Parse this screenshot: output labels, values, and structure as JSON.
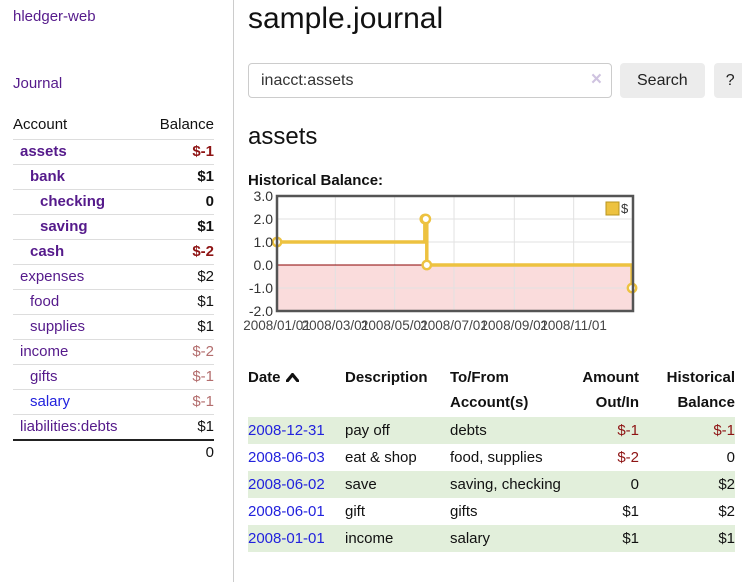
{
  "app": {
    "brand": "hledger-web"
  },
  "sidebar": {
    "journal_link": "Journal",
    "accounts": {
      "col_account": "Account",
      "col_balance": "Balance",
      "rows": [
        {
          "account": "assets",
          "balance": "$-1",
          "depth": 0,
          "bold": true,
          "balance_tone": "neg-strong",
          "link_blue": false
        },
        {
          "account": "bank",
          "balance": "$1",
          "depth": 1,
          "bold": true,
          "balance_tone": "",
          "link_blue": false
        },
        {
          "account": "checking",
          "balance": "0",
          "depth": 2,
          "bold": true,
          "balance_tone": "",
          "link_blue": false
        },
        {
          "account": "saving",
          "balance": "$1",
          "depth": 2,
          "bold": true,
          "balance_tone": "",
          "link_blue": false
        },
        {
          "account": "cash",
          "balance": "$-2",
          "depth": 1,
          "bold": true,
          "balance_tone": "neg-strong",
          "link_blue": false
        },
        {
          "account": "expenses",
          "balance": "$2",
          "depth": 0,
          "bold": false,
          "balance_tone": "",
          "link_blue": false
        },
        {
          "account": "food",
          "balance": "$1",
          "depth": 1,
          "bold": false,
          "balance_tone": "",
          "link_blue": false
        },
        {
          "account": "supplies",
          "balance": "$1",
          "depth": 1,
          "bold": false,
          "balance_tone": "",
          "link_blue": false
        },
        {
          "account": "income",
          "balance": "$-2",
          "depth": 0,
          "bold": false,
          "balance_tone": "neg-soft",
          "link_blue": false
        },
        {
          "account": "gifts",
          "balance": "$-1",
          "depth": 1,
          "bold": false,
          "balance_tone": "neg-soft",
          "link_blue": false
        },
        {
          "account": "salary",
          "balance": "$-1",
          "depth": 1,
          "bold": false,
          "balance_tone": "neg-soft",
          "link_blue": true
        },
        {
          "account": "liabilities:debts",
          "balance": "$1",
          "depth": 0,
          "bold": false,
          "balance_tone": "",
          "link_blue": false
        }
      ],
      "total": "0"
    }
  },
  "header": {
    "title": "sample.journal"
  },
  "search": {
    "value": "inacct:assets",
    "clear": "×",
    "search_label": "Search",
    "help_label": "?"
  },
  "account_page": {
    "heading": "assets",
    "chart_title": "Historical Balance:"
  },
  "chart_data": {
    "type": "line",
    "title": "Historical Balance",
    "legend": [
      {
        "label": "$",
        "color": "#edc240"
      }
    ],
    "legend_position": "top-right",
    "grid": true,
    "step": true,
    "line_color": "#edc240",
    "marker_fill": "#ffffff",
    "border_color": "#545454",
    "gridline_color": "#e2e2e2",
    "negative_region": {
      "from": -2,
      "to": 0,
      "color": "#fadcdc"
    },
    "zero_line_color": "#8b0000",
    "x_range": [
      "2008-01-01",
      "2009-01-01"
    ],
    "ylim": [
      -2,
      3
    ],
    "y_ticks": [
      3,
      2,
      1,
      0,
      -1,
      -2
    ],
    "y_tick_labels": [
      "3.0",
      "2.0",
      "1.0",
      "0.0",
      "-1.0",
      "-2.0"
    ],
    "x_tick_dates": [
      "2008-01-01",
      "2008-03-01",
      "2008-05-01",
      "2008-07-01",
      "2008-09-01",
      "2008-11-01"
    ],
    "x_tick_labels": [
      "2008/01/01",
      "2008/03/01",
      "2008/05/01",
      "2008/07/01",
      "2008/09/01",
      "2008/11/01"
    ],
    "series": [
      {
        "name": "$",
        "color": "#edc240",
        "points": [
          {
            "x": "2008-01-01",
            "y": 1
          },
          {
            "x": "2008-06-01",
            "y": 2
          },
          {
            "x": "2008-06-02",
            "y": 2
          },
          {
            "x": "2008-06-03",
            "y": 0
          },
          {
            "x": "2008-12-31",
            "y": -1
          }
        ]
      }
    ]
  },
  "register": {
    "columns": {
      "date": "Date",
      "description": "Description",
      "accounts": "To/From Account(s)",
      "amount": "Amount Out/In",
      "balance": "Historical Balance"
    },
    "rows": [
      {
        "date": "2008-12-31",
        "description": "pay off",
        "accounts": "debts",
        "amount": "$-1",
        "balance": "$-1",
        "amount_tone": "neg",
        "balance_tone": "neg"
      },
      {
        "date": "2008-06-03",
        "description": "eat & shop",
        "accounts": "food, supplies",
        "amount": "$-2",
        "balance": "0",
        "amount_tone": "neg",
        "balance_tone": ""
      },
      {
        "date": "2008-06-02",
        "description": "save",
        "accounts": "saving, checking",
        "amount": "0",
        "balance": "$2",
        "amount_tone": "",
        "balance_tone": ""
      },
      {
        "date": "2008-06-01",
        "description": "gift",
        "accounts": "gifts",
        "amount": "$1",
        "balance": "$2",
        "amount_tone": "",
        "balance_tone": ""
      },
      {
        "date": "2008-01-01",
        "description": "income",
        "accounts": "salary",
        "amount": "$1",
        "balance": "$1",
        "amount_tone": "",
        "balance_tone": ""
      }
    ]
  }
}
